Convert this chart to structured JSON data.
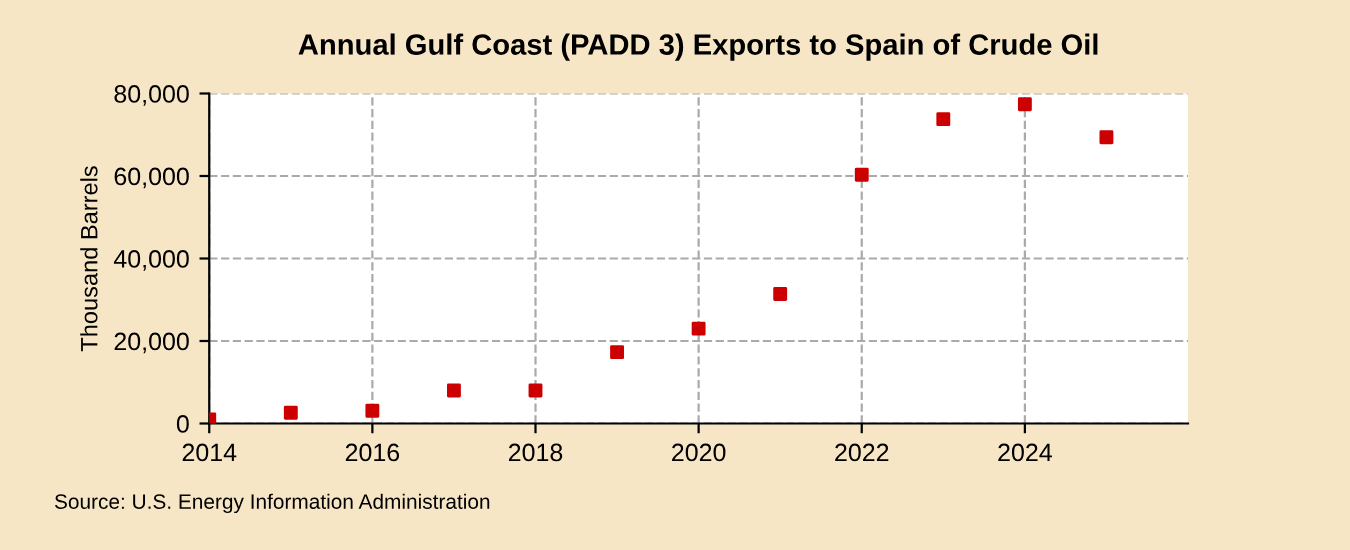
{
  "chart_data": {
    "type": "scatter",
    "title": "Annual Gulf Coast (PADD 3) Exports to Spain of Crude Oil",
    "ylabel": "Thousand Barrels",
    "x": [
      2014,
      2015,
      2016,
      2017,
      2018,
      2019,
      2020,
      2021,
      2022,
      2023,
      2024,
      2025
    ],
    "series": [
      {
        "color": "#cc0000",
        "values": [
          1000,
          2600,
          3100,
          8000,
          8000,
          17300,
          23000,
          31400,
          60300,
          73800,
          77400,
          69400
        ]
      }
    ],
    "xlim": [
      2014,
      2026
    ],
    "xticks": [
      2014,
      2016,
      2018,
      2020,
      2022,
      2024
    ],
    "ylim": [
      0,
      80000
    ],
    "yticks": [
      {
        "value": 0,
        "label": "0"
      },
      {
        "value": 20000,
        "label": "20,000"
      },
      {
        "value": 40000,
        "label": "40,000"
      },
      {
        "value": 60000,
        "label": "60,000"
      },
      {
        "value": 80000,
        "label": "80,000"
      }
    ],
    "grid": true,
    "marker": "square",
    "legend": false,
    "annotations": [
      "Source: U.S. Energy Information Administration"
    ]
  }
}
